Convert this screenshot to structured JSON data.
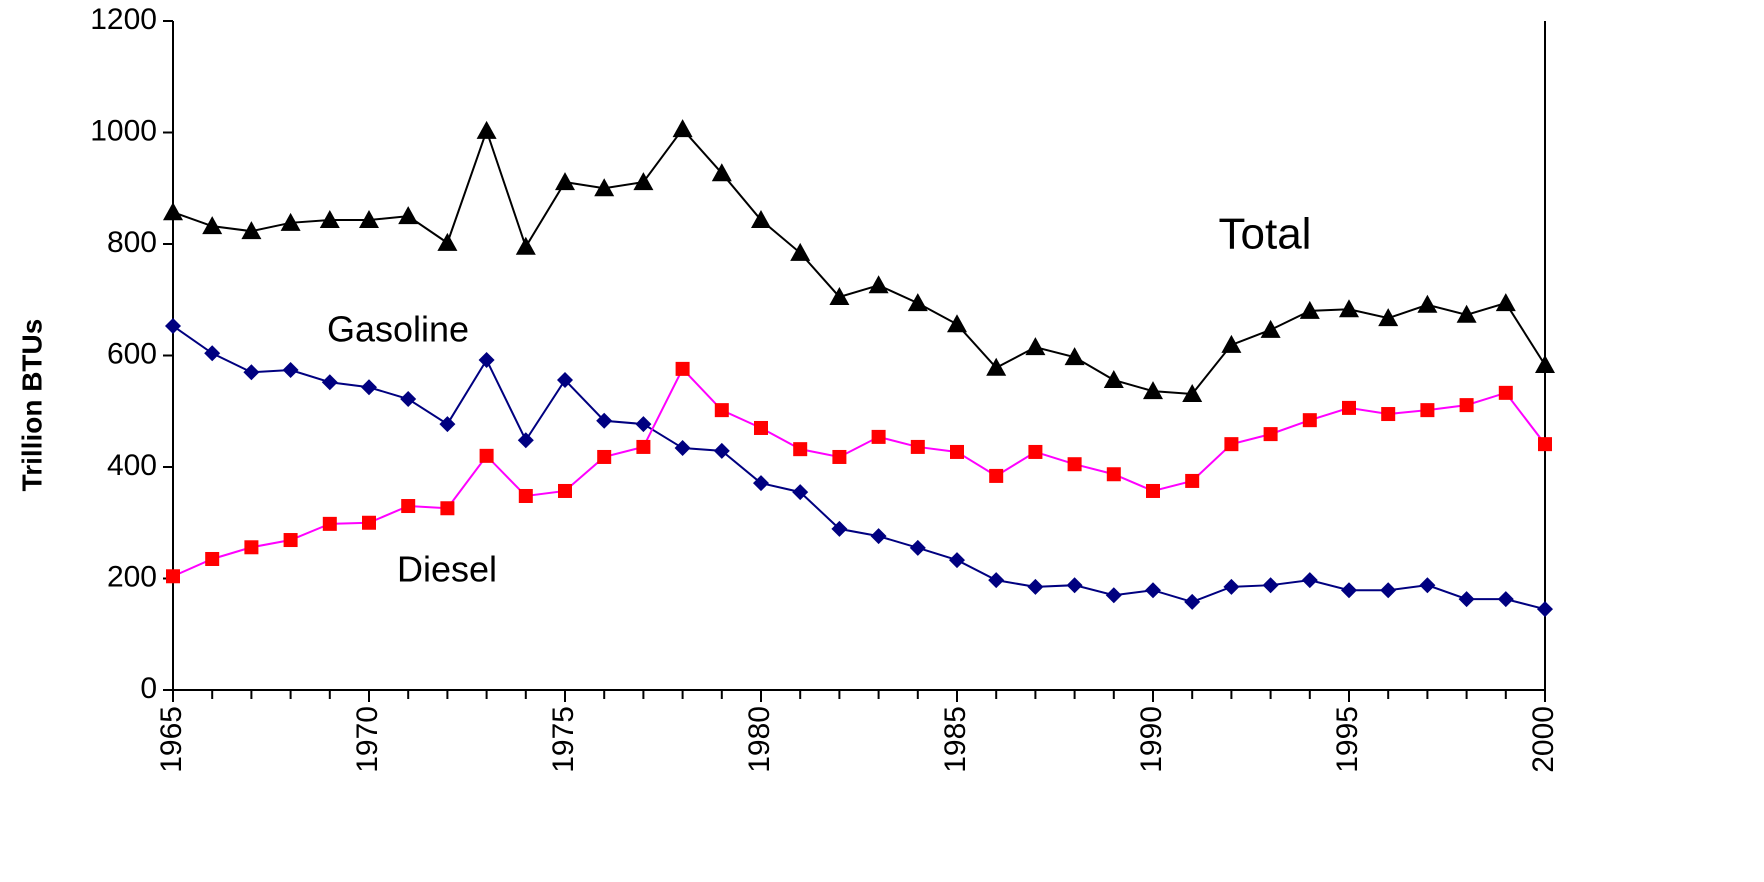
{
  "chart_data": {
    "type": "line",
    "y_label": "Trillion BTUs",
    "x": [
      1965,
      1966,
      1967,
      1968,
      1969,
      1970,
      1971,
      1972,
      1973,
      1974,
      1975,
      1976,
      1977,
      1978,
      1979,
      1980,
      1981,
      1982,
      1983,
      1984,
      1985,
      1986,
      1987,
      1988,
      1989,
      1990,
      1991,
      1992,
      1993,
      1994,
      1995,
      1996,
      1997,
      1998,
      1999,
      2000
    ],
    "xlim": [
      1965,
      2000
    ],
    "xticks": [
      1965,
      1970,
      1975,
      1980,
      1985,
      1990,
      1995,
      2000
    ],
    "ylim": [
      0,
      1200
    ],
    "yticks": [
      0,
      200,
      400,
      600,
      800,
      1000,
      1200
    ],
    "grid": false,
    "series": [
      {
        "name": "Total",
        "color": "#000000",
        "marker": "triangle",
        "values": [
          857,
          832,
          823,
          838,
          843,
          843,
          850,
          802,
          1003,
          795,
          911,
          900,
          911,
          1006,
          927,
          843,
          784,
          705,
          726,
          694,
          656,
          578,
          615,
          597,
          556,
          536,
          531,
          619,
          646,
          680,
          683,
          667,
          691,
          673,
          694,
          583
        ]
      },
      {
        "name": "Gasoline",
        "color": "#000080",
        "marker": "diamond",
        "values": [
          653,
          604,
          570,
          574,
          552,
          543,
          522,
          477,
          592,
          448,
          556,
          483,
          477,
          434,
          429,
          371,
          355,
          289,
          276,
          255,
          233,
          197,
          185,
          188,
          170,
          179,
          158,
          185,
          188,
          197,
          179,
          179,
          188,
          163,
          163,
          145
        ]
      },
      {
        "name": "Diesel",
        "color": "#ff00ff",
        "marker_color": "#ff0000",
        "marker": "square",
        "values": [
          204,
          235,
          256,
          269,
          298,
          300,
          330,
          326,
          420,
          348,
          357,
          418,
          436,
          576,
          502,
          470,
          432,
          418,
          454,
          436,
          427,
          384,
          427,
          405,
          387,
          357,
          375,
          441,
          459,
          484,
          506,
          495,
          502,
          511,
          533,
          441
        ]
      }
    ]
  }
}
